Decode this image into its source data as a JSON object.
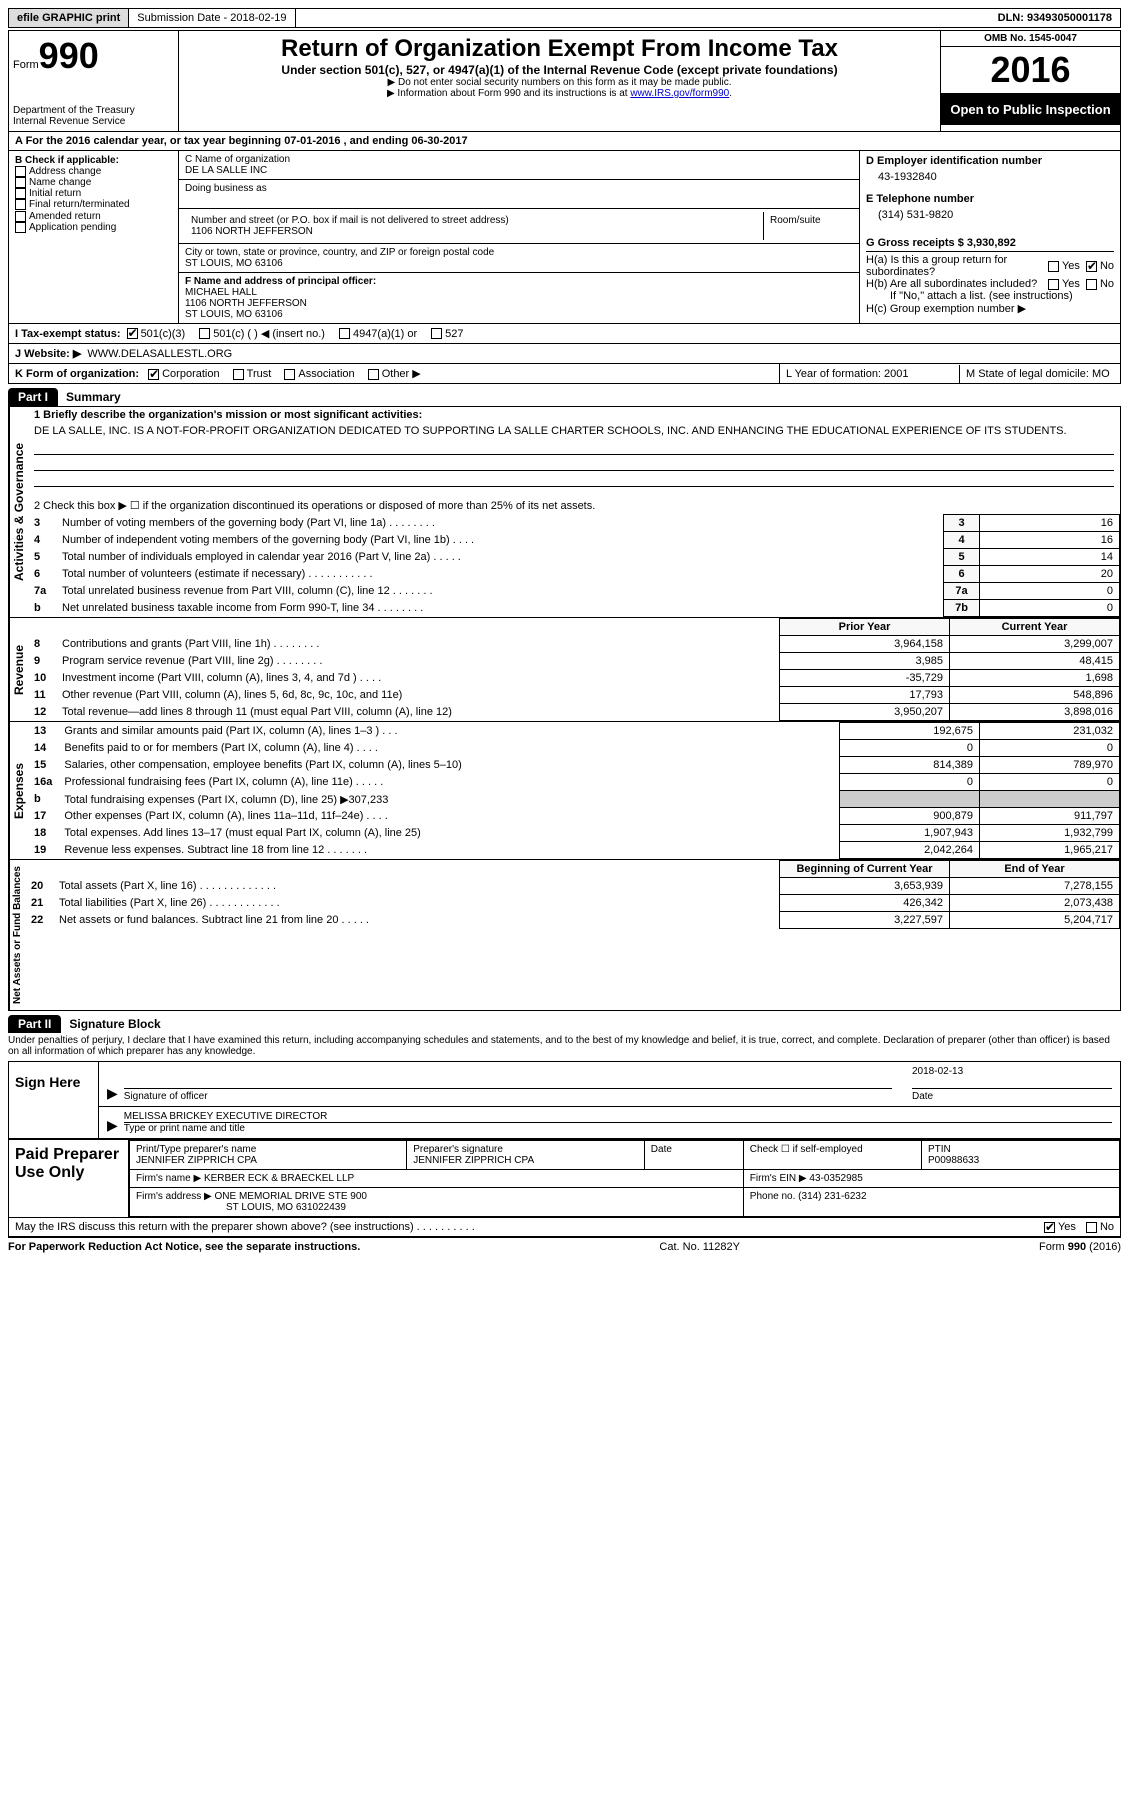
{
  "top": {
    "efile": "efile GRAPHIC print",
    "submission_label": "Submission Date - 2018-02-19",
    "dln_label": "DLN: 93493050001178"
  },
  "header": {
    "form_word": "Form",
    "form_no": "990",
    "dept": "Department of the Treasury",
    "irs": "Internal Revenue Service",
    "title": "Return of Organization Exempt From Income Tax",
    "subtitle": "Under section 501(c), 527, or 4947(a)(1) of the Internal Revenue Code (except private foundations)",
    "note1": "▶ Do not enter social security numbers on this form as it may be made public.",
    "note2_pre": "▶ Information about Form 990 and its instructions is at ",
    "note2_link": "www.IRS.gov/form990",
    "omb": "OMB No. 1545-0047",
    "year": "2016",
    "open": "Open to Public Inspection"
  },
  "rowA": "A  For the 2016 calendar year, or tax year beginning 07-01-2016   , and ending 06-30-2017",
  "colB": {
    "heading": "B Check if applicable:",
    "items": [
      "Address change",
      "Name change",
      "Initial return",
      "Final return/terminated",
      "Amended return",
      "Application pending"
    ]
  },
  "colC": {
    "name_lbl": "C Name of organization",
    "name_val": "DE LA SALLE INC",
    "dba_lbl": "Doing business as",
    "addr_lbl": "Number and street (or P.O. box if mail is not delivered to street address)",
    "room_lbl": "Room/suite",
    "addr_val": "1106 NORTH JEFFERSON",
    "city_lbl": "City or town, state or province, country, and ZIP or foreign postal code",
    "city_val": "ST LOUIS, MO  63106",
    "f_lbl": "F Name and address of principal officer:",
    "f_name": "MICHAEL HALL",
    "f_addr1": "1106 NORTH JEFFERSON",
    "f_addr2": "ST LOUIS, MO  63106"
  },
  "colD": {
    "ein_lbl": "D Employer identification number",
    "ein_val": "43-1932840",
    "tel_lbl": "E Telephone number",
    "tel_val": "(314) 531-9820",
    "gross_lbl": "G Gross receipts $ 3,930,892",
    "ha_lbl": "H(a)  Is this a group return for subordinates?",
    "hb_lbl": "H(b)  Are all subordinates included?",
    "hb_note": "If \"No,\" attach a list. (see instructions)",
    "hc_lbl": "H(c)  Group exemption number ▶",
    "yes": "Yes",
    "no": "No"
  },
  "rowI": {
    "lbl": "I  Tax-exempt status:",
    "opts": [
      "501(c)(3)",
      "501(c) (  ) ◀ (insert no.)",
      "4947(a)(1) or",
      "527"
    ]
  },
  "rowJ": {
    "lbl": "J  Website: ▶",
    "val": "WWW.DELASALLESTL.ORG"
  },
  "rowK": {
    "lbl": "K Form of organization:",
    "opts": [
      "Corporation",
      "Trust",
      "Association",
      "Other ▶"
    ],
    "l_lbl": "L Year of formation: 2001",
    "m_lbl": "M State of legal domicile: MO"
  },
  "part1": {
    "tab": "Part I",
    "title": "Summary",
    "vtab1": "Activities & Governance",
    "vtab2": "Revenue",
    "vtab3": "Expenses",
    "vtab4": "Net Assets or Fund Balances",
    "l1": "1  Briefly describe the organization's mission or most significant activities:",
    "l1_text": "DE LA SALLE, INC. IS A NOT-FOR-PROFIT ORGANIZATION DEDICATED TO SUPPORTING LA SALLE CHARTER SCHOOLS, INC. AND ENHANCING THE EDUCATIONAL EXPERIENCE OF ITS STUDENTS.",
    "l2": "2  Check this box ▶ ☐  if the organization discontinued its operations or disposed of more than 25% of its net assets.",
    "lines_a": [
      {
        "n": "3",
        "t": "Number of voting members of the governing body (Part VI, line 1a)  .   .   .   .   .   .   .   .",
        "box": "3",
        "v": "16"
      },
      {
        "n": "4",
        "t": "Number of independent voting members of the governing body (Part VI, line 1b)  .   .   .   .",
        "box": "4",
        "v": "16"
      },
      {
        "n": "5",
        "t": "Total number of individuals employed in calendar year 2016 (Part V, line 2a)  .   .   .   .   .",
        "box": "5",
        "v": "14"
      },
      {
        "n": "6",
        "t": "Total number of volunteers (estimate if necessary)   .   .   .   .   .   .   .   .   .   .   .",
        "box": "6",
        "v": "20"
      },
      {
        "n": "7a",
        "t": "Total unrelated business revenue from Part VIII, column (C), line 12  .   .   .   .   .   .   .",
        "box": "7a",
        "v": "0"
      },
      {
        "n": "b",
        "t": "Net unrelated business taxable income from Form 990-T, line 34   .   .   .   .   .   .   .   .",
        "box": "7b",
        "v": "0"
      }
    ],
    "col_py": "Prior Year",
    "col_cy": "Current Year",
    "col_boy": "Beginning of Current Year",
    "col_eoy": "End of Year",
    "lines_rev": [
      {
        "n": "8",
        "t": "Contributions and grants (Part VIII, line 1h)   .   .   .   .   .   .   .   .",
        "py": "3,964,158",
        "cy": "3,299,007"
      },
      {
        "n": "9",
        "t": "Program service revenue (Part VIII, line 2g)   .   .   .   .   .   .   .   .",
        "py": "3,985",
        "cy": "48,415"
      },
      {
        "n": "10",
        "t": "Investment income (Part VIII, column (A), lines 3, 4, and 7d )   .   .   .   .",
        "py": "-35,729",
        "cy": "1,698"
      },
      {
        "n": "11",
        "t": "Other revenue (Part VIII, column (A), lines 5, 6d, 8c, 9c, 10c, and 11e)",
        "py": "17,793",
        "cy": "548,896"
      },
      {
        "n": "12",
        "t": "Total revenue—add lines 8 through 11 (must equal Part VIII, column (A), line 12)",
        "py": "3,950,207",
        "cy": "3,898,016"
      }
    ],
    "lines_exp": [
      {
        "n": "13",
        "t": "Grants and similar amounts paid (Part IX, column (A), lines 1–3 )  .   .   .",
        "py": "192,675",
        "cy": "231,032"
      },
      {
        "n": "14",
        "t": "Benefits paid to or for members (Part IX, column (A), line 4)  .   .   .   .",
        "py": "0",
        "cy": "0"
      },
      {
        "n": "15",
        "t": "Salaries, other compensation, employee benefits (Part IX, column (A), lines 5–10)",
        "py": "814,389",
        "cy": "789,970"
      },
      {
        "n": "16a",
        "t": "Professional fundraising fees (Part IX, column (A), line 11e)   .   .   .   .   .",
        "py": "0",
        "cy": "0"
      },
      {
        "n": "b",
        "t": "Total fundraising expenses (Part IX, column (D), line 25) ▶307,233",
        "py": "shade",
        "cy": "shade"
      },
      {
        "n": "17",
        "t": "Other expenses (Part IX, column (A), lines 11a–11d, 11f–24e)   .   .   .   .",
        "py": "900,879",
        "cy": "911,797"
      },
      {
        "n": "18",
        "t": "Total expenses. Add lines 13–17 (must equal Part IX, column (A), line 25)",
        "py": "1,907,943",
        "cy": "1,932,799"
      },
      {
        "n": "19",
        "t": "Revenue less expenses. Subtract line 18 from line 12 .   .   .   .   .   .   .",
        "py": "2,042,264",
        "cy": "1,965,217"
      }
    ],
    "lines_na": [
      {
        "n": "20",
        "t": "Total assets (Part X, line 16)  .   .   .   .   .   .   .   .   .   .   .   .   .",
        "py": "3,653,939",
        "cy": "7,278,155"
      },
      {
        "n": "21",
        "t": "Total liabilities (Part X, line 26)  .   .   .   .   .   .   .   .   .   .   .   .",
        "py": "426,342",
        "cy": "2,073,438"
      },
      {
        "n": "22",
        "t": "Net assets or fund balances. Subtract line 21 from line 20   .   .   .   .   .",
        "py": "3,227,597",
        "cy": "5,204,717"
      }
    ]
  },
  "part2": {
    "tab": "Part II",
    "title": "Signature Block",
    "decl": "Under penalties of perjury, I declare that I have examined this return, including accompanying schedules and statements, and to the best of my knowledge and belief, it is true, correct, and complete. Declaration of preparer (other than officer) is based on all information of which preparer has any knowledge.",
    "sign_here": "Sign Here",
    "sig_officer": "Signature of officer",
    "sig_date": "Date",
    "sig_date_val": "2018-02-13",
    "sig_name": "MELISSA BRICKEY EXECUTIVE DIRECTOR",
    "sig_type": "Type or print name and title",
    "paid": "Paid Preparer Use Only",
    "p_name_lbl": "Print/Type preparer's name",
    "p_name": "JENNIFER ZIPPRICH CPA",
    "p_sig_lbl": "Preparer's signature",
    "p_sig": "JENNIFER ZIPPRICH CPA",
    "p_date_lbl": "Date",
    "p_check": "Check ☐ if self-employed",
    "p_ptin_lbl": "PTIN",
    "p_ptin": "P00988633",
    "firm_name_lbl": "Firm's name      ▶",
    "firm_name": "KERBER ECK & BRAECKEL LLP",
    "firm_ein_lbl": "Firm's EIN ▶",
    "firm_ein": "43-0352985",
    "firm_addr_lbl": "Firm's address ▶",
    "firm_addr": "ONE MEMORIAL DRIVE STE 900",
    "firm_city": "ST LOUIS, MO  631022439",
    "firm_phone_lbl": "Phone no.",
    "firm_phone": "(314) 231-6232",
    "discuss": "May the IRS discuss this return with the preparer shown above? (see instructions)   .   .   .   .   .   .   .   .   .   .",
    "yes": "Yes",
    "no": "No"
  },
  "footer": {
    "left": "For Paperwork Reduction Act Notice, see the separate instructions.",
    "mid": "Cat. No. 11282Y",
    "right": "Form 990 (2016)"
  }
}
